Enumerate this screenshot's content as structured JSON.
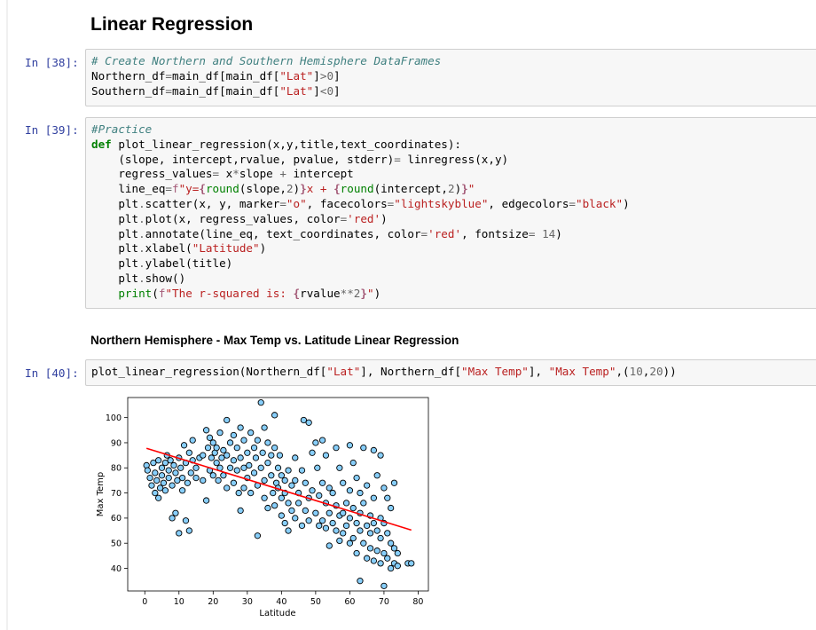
{
  "heading": "Linear Regression",
  "subheading": "Northern Hemisphere - Max Temp vs. Latitude Linear Regression",
  "cells": {
    "c38": {
      "prompt": "In [38]:",
      "l1": "# Create Northern and Southern Hemisphere DataFrames",
      "l2a": "Northern_df",
      "l2b": "=",
      "l2c": "main_df[main_df[",
      "l2d": "\"Lat\"",
      "l2e": "]",
      "l2f": ">",
      "l2g": "0",
      "l2h": "]",
      "l3a": "Southern_df",
      "l3b": "=",
      "l3c": "main_df[main_df[",
      "l3d": "\"Lat\"",
      "l3e": "]",
      "l3f": "<",
      "l3g": "0",
      "l3h": "]"
    },
    "c39": {
      "prompt": "In [39]:",
      "l1": "#Practice",
      "l2a": "def",
      "l2b": " plot_linear_regression(x,y,title,text_coordinates):",
      "l3a": "    (slope, intercept,rvalue, pvalue, stderr)",
      "l3b": "=",
      "l3c": " linregress(x,y)",
      "l4a": "    regress_values",
      "l4b": "=",
      "l4c": " x",
      "l4d": "*",
      "l4e": "slope ",
      "l4f": "+",
      "l4g": " intercept",
      "l5a": "    line_eq",
      "l5b": "=",
      "l5c": "f",
      "l5d": "\"y=",
      "l5e": "{",
      "l5f": "round",
      "l5g": "(slope,",
      "l5h": "2",
      "l5i": ")",
      "l5j": "}",
      "l5k": "x + ",
      "l5l": "{",
      "l5m": "round",
      "l5n": "(intercept,",
      "l5o": "2",
      "l5p": ")",
      "l5q": "}",
      "l5r": "\"",
      "l6a": "    plt",
      "l6b": ".",
      "l6c": "scatter(x, y, marker",
      "l6d": "=",
      "l6e": "\"o\"",
      "l6f": ", facecolors",
      "l6g": "=",
      "l6h": "\"lightskyblue\"",
      "l6i": ", edgecolors",
      "l6j": "=",
      "l6k": "\"black\"",
      "l6l": ")",
      "l7a": "    plt",
      "l7b": ".",
      "l7c": "plot(x, regress_values, color",
      "l7d": "=",
      "l7e": "'red'",
      "l7f": ")",
      "l8a": "    plt",
      "l8b": ".",
      "l8c": "annotate(line_eq, text_coordinates, color",
      "l8d": "=",
      "l8e": "'red'",
      "l8f": ", fontsize",
      "l8g": "=",
      "l8h": " 14",
      "l8i": ")",
      "l9a": "    plt",
      "l9b": ".",
      "l9c": "xlabel(",
      "l9d": "\"Latitude\"",
      "l9e": ")",
      "l10a": "    plt",
      "l10b": ".",
      "l10c": "ylabel(title)",
      "l11a": "    plt",
      "l11b": ".",
      "l11c": "show()",
      "l12a": "    ",
      "l12b": "print",
      "l12c": "(",
      "l12d": "f",
      "l12e": "\"The r-squared is: ",
      "l12f": "{",
      "l12g": "rvalue",
      "l12h": "**",
      "l12i": "2",
      "l12j": "}",
      "l12k": "\"",
      "l12l": ")"
    },
    "c40": {
      "prompt": "In [40]:",
      "l1a": "plot_linear_regression(Northern_df[",
      "l1b": "\"Lat\"",
      "l1c": "], Northern_df[",
      "l1d": "\"Max Temp\"",
      "l1e": "], ",
      "l1f": "\"Max Temp\"",
      "l1g": ",(",
      "l1h": "10",
      "l1i": ",",
      "l1j": "20",
      "l1k": "))"
    }
  },
  "chart_data": {
    "type": "scatter",
    "xlabel": "Latitude",
    "ylabel": "Max Temp",
    "xlim": [
      -5,
      83
    ],
    "ylim": [
      31,
      108
    ],
    "xticks": [
      0,
      10,
      20,
      30,
      40,
      50,
      60,
      70,
      80
    ],
    "yticks": [
      40,
      50,
      60,
      70,
      80,
      90,
      100
    ],
    "marker_face": "#87cefa",
    "marker_edge": "#000000",
    "line_color": "#ff0000",
    "regression": {
      "slope": -0.42,
      "intercept": 88.0,
      "x_start": 0.5,
      "x_end": 78
    },
    "points": [
      [
        0.5,
        81
      ],
      [
        0.8,
        79
      ],
      [
        1.5,
        76
      ],
      [
        2,
        73
      ],
      [
        2.5,
        82
      ],
      [
        3,
        78
      ],
      [
        3,
        70
      ],
      [
        3.5,
        75
      ],
      [
        4,
        83
      ],
      [
        4,
        68
      ],
      [
        4.5,
        72
      ],
      [
        5,
        80
      ],
      [
        5,
        77
      ],
      [
        5.5,
        74
      ],
      [
        6,
        82
      ],
      [
        6,
        71
      ],
      [
        6.5,
        85
      ],
      [
        7,
        79
      ],
      [
        7,
        76
      ],
      [
        7.5,
        83
      ],
      [
        8,
        73
      ],
      [
        8,
        60
      ],
      [
        8.5,
        81
      ],
      [
        9,
        78
      ],
      [
        9,
        62
      ],
      [
        9.5,
        75
      ],
      [
        10,
        84
      ],
      [
        10,
        54
      ],
      [
        10.5,
        80
      ],
      [
        11,
        71
      ],
      [
        11,
        76
      ],
      [
        11.5,
        89
      ],
      [
        12,
        82
      ],
      [
        12,
        59
      ],
      [
        12.5,
        74
      ],
      [
        13,
        86
      ],
      [
        13,
        55
      ],
      [
        13.5,
        78
      ],
      [
        14,
        91
      ],
      [
        14,
        83
      ],
      [
        15,
        80
      ],
      [
        15,
        76
      ],
      [
        16,
        84
      ],
      [
        17,
        85
      ],
      [
        17,
        75
      ],
      [
        18,
        95
      ],
      [
        18,
        67
      ],
      [
        18.5,
        88
      ],
      [
        19,
        92
      ],
      [
        19,
        79
      ],
      [
        19.5,
        84
      ],
      [
        20,
        90
      ],
      [
        20,
        77
      ],
      [
        20.5,
        86
      ],
      [
        21,
        82
      ],
      [
        21,
        88
      ],
      [
        21.5,
        75
      ],
      [
        22,
        94
      ],
      [
        22,
        80
      ],
      [
        22.5,
        84
      ],
      [
        23,
        87
      ],
      [
        23,
        77
      ],
      [
        24,
        99
      ],
      [
        24,
        85
      ],
      [
        24,
        72
      ],
      [
        25,
        90
      ],
      [
        25,
        80
      ],
      [
        26,
        93
      ],
      [
        26,
        83
      ],
      [
        26,
        74
      ],
      [
        27,
        88
      ],
      [
        27,
        79
      ],
      [
        27.5,
        70
      ],
      [
        28,
        96
      ],
      [
        28,
        84
      ],
      [
        28,
        63
      ],
      [
        29,
        91
      ],
      [
        29,
        80
      ],
      [
        29,
        72
      ],
      [
        30,
        86
      ],
      [
        30,
        76
      ],
      [
        30.5,
        81
      ],
      [
        31,
        94
      ],
      [
        31,
        70
      ],
      [
        32,
        88
      ],
      [
        32,
        78
      ],
      [
        32.5,
        84
      ],
      [
        33,
        91
      ],
      [
        33,
        73
      ],
      [
        33,
        53
      ],
      [
        34,
        106
      ],
      [
        34,
        80
      ],
      [
        34.5,
        86
      ],
      [
        35,
        96
      ],
      [
        35,
        75
      ],
      [
        35,
        68
      ],
      [
        36,
        90
      ],
      [
        36,
        82
      ],
      [
        36,
        64
      ],
      [
        37,
        85
      ],
      [
        37,
        77
      ],
      [
        37.5,
        70
      ],
      [
        38,
        101
      ],
      [
        38,
        88
      ],
      [
        38,
        65
      ],
      [
        38.5,
        74
      ],
      [
        39,
        80
      ],
      [
        39,
        72
      ],
      [
        39.5,
        85
      ],
      [
        40,
        77
      ],
      [
        40,
        68
      ],
      [
        40,
        61
      ],
      [
        41,
        75
      ],
      [
        41,
        70
      ],
      [
        41,
        58
      ],
      [
        42,
        79
      ],
      [
        42,
        66
      ],
      [
        42,
        55
      ],
      [
        43,
        73
      ],
      [
        43,
        63
      ],
      [
        44,
        84
      ],
      [
        44,
        75
      ],
      [
        44,
        60
      ],
      [
        45,
        70
      ],
      [
        45,
        66
      ],
      [
        46,
        79
      ],
      [
        46,
        57
      ],
      [
        46.5,
        99
      ],
      [
        47,
        74
      ],
      [
        47,
        63
      ],
      [
        48,
        98
      ],
      [
        48,
        68
      ],
      [
        48,
        59
      ],
      [
        49,
        86
      ],
      [
        49,
        71
      ],
      [
        50,
        90
      ],
      [
        50,
        62
      ],
      [
        50.5,
        80
      ],
      [
        51,
        69
      ],
      [
        51,
        57
      ],
      [
        52,
        91
      ],
      [
        52,
        74
      ],
      [
        52,
        59
      ],
      [
        53,
        85
      ],
      [
        53,
        66
      ],
      [
        53,
        56
      ],
      [
        54,
        72
      ],
      [
        54,
        62
      ],
      [
        54,
        49
      ],
      [
        55,
        70
      ],
      [
        55,
        58
      ],
      [
        56,
        88
      ],
      [
        56,
        65
      ],
      [
        56,
        55
      ],
      [
        57,
        80
      ],
      [
        57,
        61
      ],
      [
        57,
        51
      ],
      [
        58,
        74
      ],
      [
        58,
        62
      ],
      [
        58,
        54
      ],
      [
        59,
        66
      ],
      [
        59,
        57
      ],
      [
        60,
        89
      ],
      [
        60,
        71
      ],
      [
        60,
        60
      ],
      [
        60,
        50
      ],
      [
        61,
        82
      ],
      [
        61,
        64
      ],
      [
        61,
        52
      ],
      [
        62,
        76
      ],
      [
        62,
        58
      ],
      [
        62,
        46
      ],
      [
        63,
        70
      ],
      [
        63,
        62
      ],
      [
        63,
        55
      ],
      [
        63,
        35
      ],
      [
        64,
        88
      ],
      [
        64,
        66
      ],
      [
        64,
        50
      ],
      [
        65,
        73
      ],
      [
        65,
        57
      ],
      [
        65,
        44
      ],
      [
        66,
        61
      ],
      [
        66,
        54
      ],
      [
        66,
        48
      ],
      [
        67,
        87
      ],
      [
        67,
        68
      ],
      [
        67,
        58
      ],
      [
        67,
        43
      ],
      [
        68,
        77
      ],
      [
        68,
        55
      ],
      [
        68,
        47
      ],
      [
        69,
        85
      ],
      [
        69,
        60
      ],
      [
        69,
        52
      ],
      [
        69,
        42
      ],
      [
        70,
        72
      ],
      [
        70,
        58
      ],
      [
        70,
        46
      ],
      [
        70,
        33
      ],
      [
        71,
        68
      ],
      [
        71,
        54
      ],
      [
        71,
        44
      ],
      [
        72,
        64
      ],
      [
        72,
        50
      ],
      [
        72,
        40
      ],
      [
        73,
        74
      ],
      [
        73,
        48
      ],
      [
        73,
        42
      ],
      [
        74,
        46
      ],
      [
        74,
        41
      ],
      [
        77,
        42
      ],
      [
        78,
        42
      ]
    ]
  }
}
